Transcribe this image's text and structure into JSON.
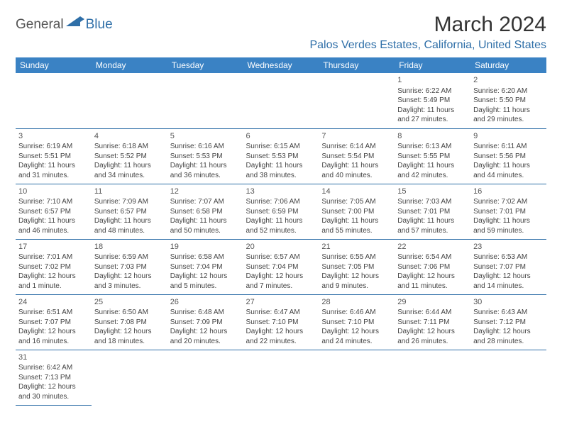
{
  "logo": {
    "text1": "General",
    "text2": "Blue"
  },
  "title": "March 2024",
  "location": "Palos Verdes Estates, California, United States",
  "colors": {
    "header_bg": "#3a82c4",
    "header_text": "#ffffff",
    "accent": "#2f6fa8",
    "border": "#2f6fa8",
    "body_text": "#444444",
    "title_text": "#333333",
    "background": "#ffffff"
  },
  "day_headers": [
    "Sunday",
    "Monday",
    "Tuesday",
    "Wednesday",
    "Thursday",
    "Friday",
    "Saturday"
  ],
  "weeks": [
    [
      null,
      null,
      null,
      null,
      null,
      {
        "n": "1",
        "sunrise": "Sunrise: 6:22 AM",
        "sunset": "Sunset: 5:49 PM",
        "day1": "Daylight: 11 hours",
        "day2": "and 27 minutes."
      },
      {
        "n": "2",
        "sunrise": "Sunrise: 6:20 AM",
        "sunset": "Sunset: 5:50 PM",
        "day1": "Daylight: 11 hours",
        "day2": "and 29 minutes."
      }
    ],
    [
      {
        "n": "3",
        "sunrise": "Sunrise: 6:19 AM",
        "sunset": "Sunset: 5:51 PM",
        "day1": "Daylight: 11 hours",
        "day2": "and 31 minutes."
      },
      {
        "n": "4",
        "sunrise": "Sunrise: 6:18 AM",
        "sunset": "Sunset: 5:52 PM",
        "day1": "Daylight: 11 hours",
        "day2": "and 34 minutes."
      },
      {
        "n": "5",
        "sunrise": "Sunrise: 6:16 AM",
        "sunset": "Sunset: 5:53 PM",
        "day1": "Daylight: 11 hours",
        "day2": "and 36 minutes."
      },
      {
        "n": "6",
        "sunrise": "Sunrise: 6:15 AM",
        "sunset": "Sunset: 5:53 PM",
        "day1": "Daylight: 11 hours",
        "day2": "and 38 minutes."
      },
      {
        "n": "7",
        "sunrise": "Sunrise: 6:14 AM",
        "sunset": "Sunset: 5:54 PM",
        "day1": "Daylight: 11 hours",
        "day2": "and 40 minutes."
      },
      {
        "n": "8",
        "sunrise": "Sunrise: 6:13 AM",
        "sunset": "Sunset: 5:55 PM",
        "day1": "Daylight: 11 hours",
        "day2": "and 42 minutes."
      },
      {
        "n": "9",
        "sunrise": "Sunrise: 6:11 AM",
        "sunset": "Sunset: 5:56 PM",
        "day1": "Daylight: 11 hours",
        "day2": "and 44 minutes."
      }
    ],
    [
      {
        "n": "10",
        "sunrise": "Sunrise: 7:10 AM",
        "sunset": "Sunset: 6:57 PM",
        "day1": "Daylight: 11 hours",
        "day2": "and 46 minutes."
      },
      {
        "n": "11",
        "sunrise": "Sunrise: 7:09 AM",
        "sunset": "Sunset: 6:57 PM",
        "day1": "Daylight: 11 hours",
        "day2": "and 48 minutes."
      },
      {
        "n": "12",
        "sunrise": "Sunrise: 7:07 AM",
        "sunset": "Sunset: 6:58 PM",
        "day1": "Daylight: 11 hours",
        "day2": "and 50 minutes."
      },
      {
        "n": "13",
        "sunrise": "Sunrise: 7:06 AM",
        "sunset": "Sunset: 6:59 PM",
        "day1": "Daylight: 11 hours",
        "day2": "and 52 minutes."
      },
      {
        "n": "14",
        "sunrise": "Sunrise: 7:05 AM",
        "sunset": "Sunset: 7:00 PM",
        "day1": "Daylight: 11 hours",
        "day2": "and 55 minutes."
      },
      {
        "n": "15",
        "sunrise": "Sunrise: 7:03 AM",
        "sunset": "Sunset: 7:01 PM",
        "day1": "Daylight: 11 hours",
        "day2": "and 57 minutes."
      },
      {
        "n": "16",
        "sunrise": "Sunrise: 7:02 AM",
        "sunset": "Sunset: 7:01 PM",
        "day1": "Daylight: 11 hours",
        "day2": "and 59 minutes."
      }
    ],
    [
      {
        "n": "17",
        "sunrise": "Sunrise: 7:01 AM",
        "sunset": "Sunset: 7:02 PM",
        "day1": "Daylight: 12 hours",
        "day2": "and 1 minute."
      },
      {
        "n": "18",
        "sunrise": "Sunrise: 6:59 AM",
        "sunset": "Sunset: 7:03 PM",
        "day1": "Daylight: 12 hours",
        "day2": "and 3 minutes."
      },
      {
        "n": "19",
        "sunrise": "Sunrise: 6:58 AM",
        "sunset": "Sunset: 7:04 PM",
        "day1": "Daylight: 12 hours",
        "day2": "and 5 minutes."
      },
      {
        "n": "20",
        "sunrise": "Sunrise: 6:57 AM",
        "sunset": "Sunset: 7:04 PM",
        "day1": "Daylight: 12 hours",
        "day2": "and 7 minutes."
      },
      {
        "n": "21",
        "sunrise": "Sunrise: 6:55 AM",
        "sunset": "Sunset: 7:05 PM",
        "day1": "Daylight: 12 hours",
        "day2": "and 9 minutes."
      },
      {
        "n": "22",
        "sunrise": "Sunrise: 6:54 AM",
        "sunset": "Sunset: 7:06 PM",
        "day1": "Daylight: 12 hours",
        "day2": "and 11 minutes."
      },
      {
        "n": "23",
        "sunrise": "Sunrise: 6:53 AM",
        "sunset": "Sunset: 7:07 PM",
        "day1": "Daylight: 12 hours",
        "day2": "and 14 minutes."
      }
    ],
    [
      {
        "n": "24",
        "sunrise": "Sunrise: 6:51 AM",
        "sunset": "Sunset: 7:07 PM",
        "day1": "Daylight: 12 hours",
        "day2": "and 16 minutes."
      },
      {
        "n": "25",
        "sunrise": "Sunrise: 6:50 AM",
        "sunset": "Sunset: 7:08 PM",
        "day1": "Daylight: 12 hours",
        "day2": "and 18 minutes."
      },
      {
        "n": "26",
        "sunrise": "Sunrise: 6:48 AM",
        "sunset": "Sunset: 7:09 PM",
        "day1": "Daylight: 12 hours",
        "day2": "and 20 minutes."
      },
      {
        "n": "27",
        "sunrise": "Sunrise: 6:47 AM",
        "sunset": "Sunset: 7:10 PM",
        "day1": "Daylight: 12 hours",
        "day2": "and 22 minutes."
      },
      {
        "n": "28",
        "sunrise": "Sunrise: 6:46 AM",
        "sunset": "Sunset: 7:10 PM",
        "day1": "Daylight: 12 hours",
        "day2": "and 24 minutes."
      },
      {
        "n": "29",
        "sunrise": "Sunrise: 6:44 AM",
        "sunset": "Sunset: 7:11 PM",
        "day1": "Daylight: 12 hours",
        "day2": "and 26 minutes."
      },
      {
        "n": "30",
        "sunrise": "Sunrise: 6:43 AM",
        "sunset": "Sunset: 7:12 PM",
        "day1": "Daylight: 12 hours",
        "day2": "and 28 minutes."
      }
    ],
    [
      {
        "n": "31",
        "sunrise": "Sunrise: 6:42 AM",
        "sunset": "Sunset: 7:13 PM",
        "day1": "Daylight: 12 hours",
        "day2": "and 30 minutes."
      },
      null,
      null,
      null,
      null,
      null,
      null
    ]
  ]
}
